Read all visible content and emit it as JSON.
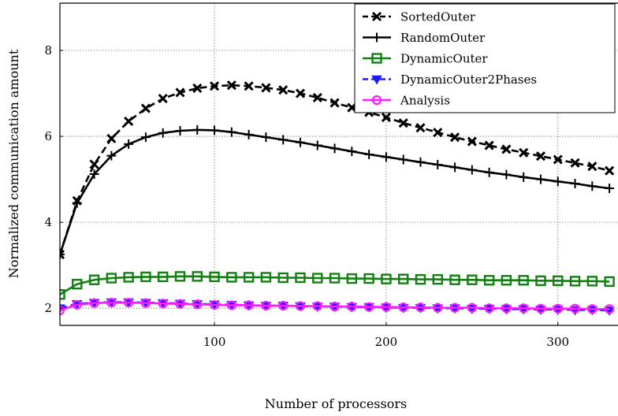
{
  "chart_data": {
    "type": "line",
    "xlabel": "Number of processors",
    "ylabel": "Normalized communication amount",
    "xlim": [
      10,
      335
    ],
    "ylim": [
      1.6,
      9.1
    ],
    "xticks": [
      100,
      200,
      300
    ],
    "yticks": [
      2,
      4,
      6,
      8
    ],
    "grid": true,
    "legend_position": "top-right",
    "x": [
      10,
      20,
      30,
      40,
      50,
      60,
      70,
      80,
      90,
      100,
      110,
      120,
      130,
      140,
      150,
      160,
      170,
      180,
      190,
      200,
      210,
      220,
      230,
      240,
      250,
      260,
      270,
      280,
      290,
      300,
      310,
      320,
      330
    ],
    "series": [
      {
        "name": "SortedOuter",
        "display_name": "SortedOuter",
        "color": "#000000",
        "dashed": true,
        "marker": "x",
        "values": [
          3.25,
          4.5,
          5.35,
          5.95,
          6.35,
          6.65,
          6.88,
          7.02,
          7.12,
          7.17,
          7.19,
          7.17,
          7.13,
          7.08,
          7.0,
          6.9,
          6.78,
          6.67,
          6.56,
          6.44,
          6.31,
          6.2,
          6.09,
          5.98,
          5.88,
          5.79,
          5.7,
          5.62,
          5.54,
          5.46,
          5.38,
          5.3,
          5.2
        ]
      },
      {
        "name": "RandomOuter",
        "display_name": "RandomOuter",
        "color": "#000000",
        "dashed": false,
        "marker": "plus",
        "values": [
          3.25,
          4.45,
          5.12,
          5.55,
          5.82,
          5.98,
          6.08,
          6.13,
          6.15,
          6.14,
          6.1,
          6.04,
          5.98,
          5.92,
          5.86,
          5.79,
          5.72,
          5.65,
          5.58,
          5.52,
          5.46,
          5.4,
          5.34,
          5.28,
          5.22,
          5.16,
          5.11,
          5.05,
          5.0,
          4.95,
          4.9,
          4.84,
          4.79
        ]
      },
      {
        "name": "DynamicOuter",
        "display_name": "DynamicOuter",
        "color": "#118011",
        "dashed": false,
        "marker": "square",
        "values": [
          2.32,
          2.56,
          2.66,
          2.7,
          2.72,
          2.73,
          2.73,
          2.74,
          2.74,
          2.73,
          2.72,
          2.72,
          2.72,
          2.71,
          2.71,
          2.7,
          2.7,
          2.69,
          2.69,
          2.68,
          2.68,
          2.67,
          2.67,
          2.66,
          2.66,
          2.65,
          2.65,
          2.65,
          2.64,
          2.64,
          2.63,
          2.63,
          2.62
        ]
      },
      {
        "name": "DynamicOuter2Phases",
        "display_name": "DynamicOuter2Phases",
        "color": "#1a1aff",
        "dashed": true,
        "marker": "triangle-down",
        "values": [
          2.0,
          2.1,
          2.13,
          2.14,
          2.14,
          2.13,
          2.12,
          2.11,
          2.1,
          2.09,
          2.08,
          2.07,
          2.06,
          2.06,
          2.05,
          2.04,
          2.04,
          2.03,
          2.03,
          2.02,
          2.01,
          2.01,
          2.0,
          2.0,
          1.99,
          1.99,
          1.98,
          1.98,
          1.97,
          1.97,
          1.96,
          1.96,
          1.95
        ]
      },
      {
        "name": "Analysis",
        "display_name": "Analysis",
        "color": "#ff1aff",
        "dashed": false,
        "marker": "circle",
        "values": [
          1.95,
          2.08,
          2.12,
          2.13,
          2.13,
          2.12,
          2.11,
          2.1,
          2.09,
          2.08,
          2.07,
          2.07,
          2.06,
          2.06,
          2.05,
          2.05,
          2.04,
          2.04,
          2.03,
          2.03,
          2.02,
          2.02,
          2.01,
          2.01,
          2.01,
          2.0,
          2.0,
          2.0,
          1.99,
          1.99,
          1.99,
          1.98,
          1.98
        ]
      }
    ]
  }
}
